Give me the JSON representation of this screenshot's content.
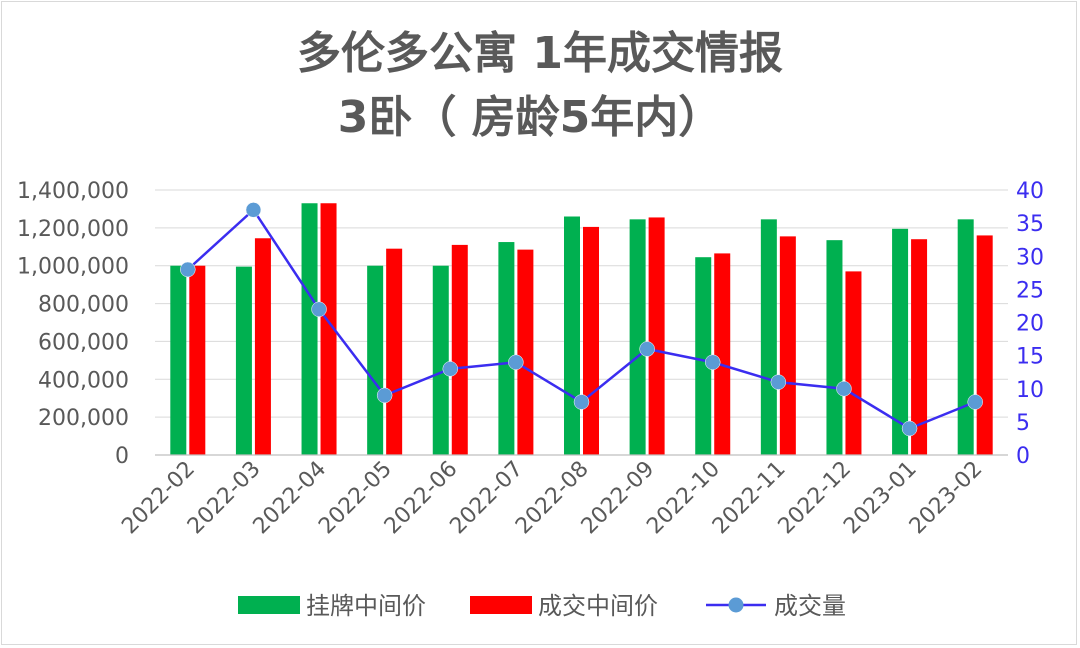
{
  "chart_data": {
    "type": "bar",
    "title": "多伦多公寓 1年成交情报",
    "subtitle": "3卧（ 房龄5年内）",
    "categories": [
      "2022-02",
      "2022-03",
      "2022-04",
      "2022-05",
      "2022-06",
      "2022-07",
      "2022-08",
      "2022-09",
      "2022-10",
      "2022-11",
      "2022-12",
      "2023-01",
      "2023-02"
    ],
    "series": [
      {
        "name": "挂牌中间价",
        "axis": "left",
        "kind": "bar",
        "color": "#00b050",
        "values": [
          1000000,
          995000,
          1330000,
          1000000,
          1000000,
          1125000,
          1260000,
          1245000,
          1045000,
          1245000,
          1135000,
          1195000,
          1245000
        ]
      },
      {
        "name": "成交中间价",
        "axis": "left",
        "kind": "bar",
        "color": "#ff0000",
        "values": [
          1000000,
          1145000,
          1330000,
          1090000,
          1110000,
          1085000,
          1205000,
          1255000,
          1065000,
          1155000,
          970000,
          1140000,
          1160000
        ]
      },
      {
        "name": "成交量",
        "axis": "right",
        "kind": "line",
        "color": "#3b2df0",
        "marker_color": "#5b9bd5",
        "values": [
          28,
          37,
          22,
          9,
          13,
          14,
          8,
          16,
          14,
          11,
          10,
          4,
          8
        ]
      }
    ],
    "ylim_left": [
      0,
      1400000
    ],
    "ylim_right": [
      0,
      40
    ],
    "left_ticks": [
      "0",
      "200,000",
      "400,000",
      "600,000",
      "800,000",
      "1,000,000",
      "1,200,000",
      "1,400,000"
    ],
    "left_tick_values": [
      0,
      200000,
      400000,
      600000,
      800000,
      1000000,
      1200000,
      1400000
    ],
    "right_ticks": [
      "0",
      "5",
      "10",
      "15",
      "20",
      "25",
      "30",
      "35",
      "40"
    ],
    "right_tick_values": [
      0,
      5,
      10,
      15,
      20,
      25,
      30,
      35,
      40
    ],
    "grid": true,
    "legend_position": "bottom"
  }
}
